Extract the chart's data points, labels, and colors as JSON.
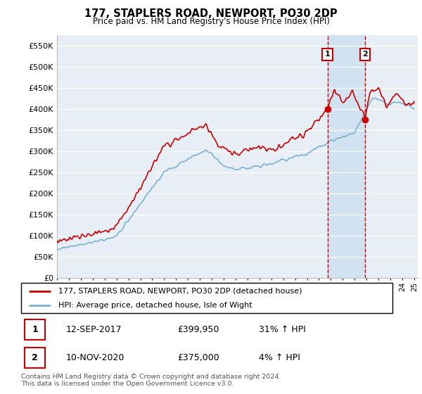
{
  "title": "177, STAPLERS ROAD, NEWPORT, PO30 2DP",
  "subtitle": "Price paid vs. HM Land Registry's House Price Index (HPI)",
  "legend_line1": "177, STAPLERS ROAD, NEWPORT, PO30 2DP (detached house)",
  "legend_line2": "HPI: Average price, detached house, Isle of Wight",
  "table_rows": [
    {
      "num": "1",
      "date": "12-SEP-2017",
      "price": "£399,950",
      "change": "31% ↑ HPI"
    },
    {
      "num": "2",
      "date": "10-NOV-2020",
      "price": "£375,000",
      "change": "4% ↑ HPI"
    }
  ],
  "footnote": "Contains HM Land Registry data © Crown copyright and database right 2024.\nThis data is licensed under the Open Government Licence v3.0.",
  "ylim": [
    0,
    575000
  ],
  "yticks": [
    0,
    50000,
    100000,
    150000,
    200000,
    250000,
    300000,
    350000,
    400000,
    450000,
    500000,
    550000
  ],
  "ytick_labels": [
    "£0",
    "£50K",
    "£100K",
    "£150K",
    "£200K",
    "£250K",
    "£300K",
    "£350K",
    "£400K",
    "£450K",
    "£500K",
    "£550K"
  ],
  "red_color": "#cc0000",
  "blue_color": "#7ab0d4",
  "sale1_x": 2017.72,
  "sale1_y": 399950,
  "sale2_x": 2020.87,
  "sale2_y": 375000,
  "vline1_x": 2017.72,
  "vline2_x": 2020.87,
  "background_plot": "#e8eef5",
  "grid_color": "#ffffff",
  "shaded_start": 2017.72,
  "shaded_end": 2020.87,
  "xlim_start": 1995,
  "xlim_end": 2025.3
}
